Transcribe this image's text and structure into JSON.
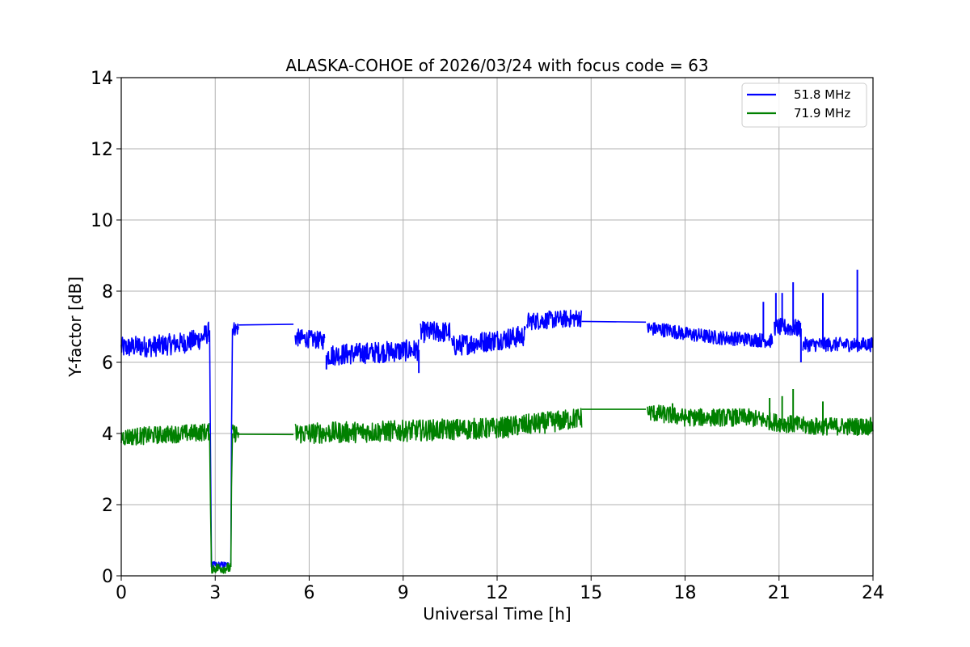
{
  "chart_data": {
    "type": "line",
    "title": "ALASKA-COHOE of 2026/03/24 with focus code = 63",
    "xlabel": "Universal Time [h]",
    "ylabel": "Y-factor [dB]",
    "xlim": [
      0,
      24
    ],
    "ylim": [
      0,
      14
    ],
    "xticks": [
      0,
      3,
      6,
      9,
      12,
      15,
      18,
      21,
      24
    ],
    "xtick_labels": [
      "0",
      "3",
      "6",
      "9",
      "12",
      "15",
      "18",
      "21",
      "24"
    ],
    "yticks": [
      0,
      2,
      4,
      6,
      8,
      10,
      12,
      14
    ],
    "ytick_labels": [
      "0",
      "2",
      "4",
      "6",
      "8",
      "10",
      "12",
      "14"
    ],
    "grid": true,
    "legend_position": "top-right",
    "series": [
      {
        "name": "51.8 MHz",
        "color": "#0000ff",
        "segments": [
          {
            "x": [
              0,
              0.5,
              1.0,
              1.5,
              2.0,
              2.5,
              2.8
            ],
            "y": [
              6.4,
              6.45,
              6.45,
              6.5,
              6.55,
              6.65,
              6.85
            ],
            "noise": 0.3
          },
          {
            "x": [
              2.82,
              2.85,
              2.88
            ],
            "y": [
              6.9,
              3.5,
              0.3
            ],
            "noise": 0
          },
          {
            "x": [
              2.88,
              3.5
            ],
            "y": [
              0.3,
              0.3
            ],
            "noise": 0.1
          },
          {
            "x": [
              3.5,
              3.52,
              3.55
            ],
            "y": [
              0.3,
              4.0,
              6.9
            ],
            "noise": 0
          },
          {
            "x": [
              3.55,
              3.75
            ],
            "y": [
              6.95,
              6.95
            ],
            "noise": 0.2
          },
          {
            "x": [
              3.75,
              5.5
            ],
            "y": [
              7.05,
              7.07
            ],
            "noise": 0
          },
          {
            "x": [
              5.55,
              6.5
            ],
            "y": [
              6.7,
              6.6
            ],
            "noise": 0.25
          },
          {
            "x": [
              6.55,
              9.5
            ],
            "y": [
              6.2,
              6.35
            ],
            "noise": 0.3
          },
          {
            "x": [
              9.55,
              10.5
            ],
            "y": [
              6.85,
              6.85
            ],
            "noise": 0.3
          },
          {
            "x": [
              10.55,
              12.9
            ],
            "y": [
              6.45,
              6.75
            ],
            "noise": 0.3
          },
          {
            "x": [
              12.95,
              14.7
            ],
            "y": [
              7.15,
              7.25
            ],
            "noise": 0.25
          },
          {
            "x": [
              14.7,
              16.75
            ],
            "y": [
              7.15,
              7.13
            ],
            "noise": 0
          },
          {
            "x": [
              16.8,
              17.5,
              18.0,
              19.0,
              20.0,
              20.8
            ],
            "y": [
              6.95,
              6.9,
              6.8,
              6.7,
              6.65,
              6.6
            ],
            "noise": 0.2
          },
          {
            "x": [
              20.85,
              21.7
            ],
            "y": [
              7.0,
              6.95
            ],
            "noise": 0.25
          },
          {
            "x": [
              21.75,
              24.0
            ],
            "y": [
              6.5,
              6.5
            ],
            "noise": 0.2
          }
        ],
        "spikes": [
          {
            "x": 6.55,
            "y": 5.8
          },
          {
            "x": 9.5,
            "y": 5.7
          },
          {
            "x": 20.5,
            "y": 7.7
          },
          {
            "x": 20.9,
            "y": 7.95
          },
          {
            "x": 21.1,
            "y": 7.95
          },
          {
            "x": 21.45,
            "y": 8.25
          },
          {
            "x": 21.7,
            "y": 6.0
          },
          {
            "x": 22.4,
            "y": 7.95
          },
          {
            "x": 23.5,
            "y": 8.6
          }
        ]
      },
      {
        "name": "71.9 MHz",
        "color": "#008000",
        "segments": [
          {
            "x": [
              0,
              1.0,
              2.0,
              2.8
            ],
            "y": [
              3.9,
              3.95,
              4.0,
              4.05
            ],
            "noise": 0.25
          },
          {
            "x": [
              2.82,
              2.85,
              2.88
            ],
            "y": [
              4.0,
              2.0,
              0.25
            ],
            "noise": 0
          },
          {
            "x": [
              2.88,
              3.5
            ],
            "y": [
              0.22,
              0.22
            ],
            "noise": 0.15
          },
          {
            "x": [
              3.5,
              3.52,
              3.55
            ],
            "y": [
              0.25,
              2.5,
              4.0
            ],
            "noise": 0
          },
          {
            "x": [
              3.55,
              3.75
            ],
            "y": [
              4.0,
              4.0
            ],
            "noise": 0.25
          },
          {
            "x": [
              3.75,
              5.5
            ],
            "y": [
              3.98,
              3.97
            ],
            "noise": 0
          },
          {
            "x": [
              5.55,
              8.0,
              10.0,
              12.0,
              14.0,
              14.7
            ],
            "y": [
              4.0,
              4.05,
              4.1,
              4.15,
              4.35,
              4.45
            ],
            "noise": 0.3
          },
          {
            "x": [
              14.7,
              16.75
            ],
            "y": [
              4.68,
              4.68
            ],
            "noise": 0
          },
          {
            "x": [
              16.8,
              18.0,
              20.0,
              21.0,
              22.0,
              24.0
            ],
            "y": [
              4.6,
              4.45,
              4.45,
              4.3,
              4.2,
              4.2
            ],
            "noise": 0.25
          }
        ],
        "spikes": [
          {
            "x": 17.6,
            "y": 4.85
          },
          {
            "x": 20.7,
            "y": 5.0
          },
          {
            "x": 21.1,
            "y": 5.05
          },
          {
            "x": 21.45,
            "y": 5.25
          },
          {
            "x": 22.4,
            "y": 4.9
          }
        ]
      }
    ]
  }
}
